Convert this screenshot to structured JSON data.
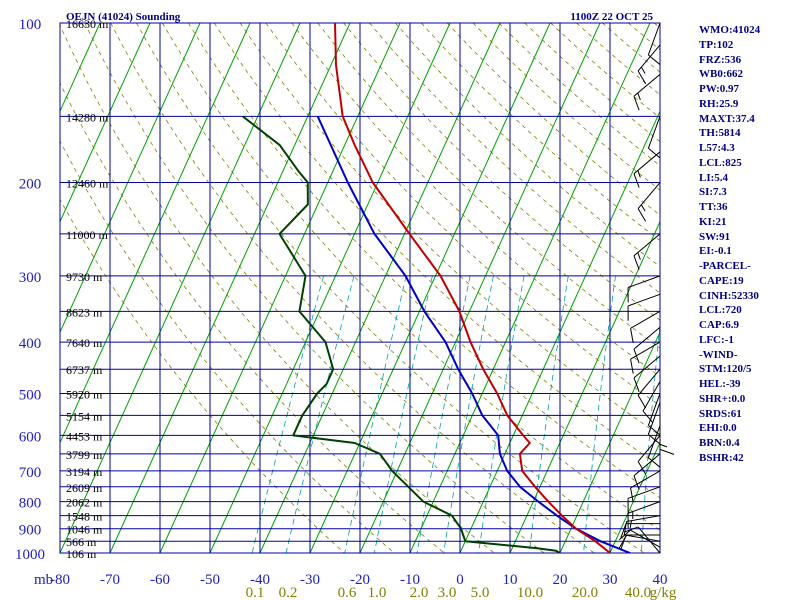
{
  "chart_data": {
    "type": "skew-t",
    "title": "OEJN (41024) Sounding",
    "valid_time": "1100Z 22 OCT 25",
    "pressure_ticks": [
      100,
      200,
      300,
      400,
      500,
      600,
      700,
      800,
      900,
      1000
    ],
    "pressure_unit": "mb",
    "pressure_range": [
      100,
      1000
    ],
    "log_pressure_axis": true,
    "temp_ticks": [
      -80,
      -70,
      -60,
      -50,
      -40,
      -30,
      -20,
      -10,
      0,
      10,
      20,
      30,
      40
    ],
    "temp_range": [
      -80,
      40
    ],
    "mixing_ratio_labels": [
      "0.1",
      "0.2",
      "0.6",
      "1.0",
      "2.0",
      "3.0",
      "5.0",
      "10.0",
      "20.0",
      "40.0"
    ],
    "mixing_ratio_unit": "g/kg",
    "height_labels": [
      {
        "p": 100,
        "label": "16630 m"
      },
      {
        "p": 150,
        "label": "14280 m"
      },
      {
        "p": 200,
        "label": "12460 m"
      },
      {
        "p": 250,
        "label": "11000 m"
      },
      {
        "p": 300,
        "label": "9730 m"
      },
      {
        "p": 350,
        "label": "8623 m"
      },
      {
        "p": 400,
        "label": "7640 m"
      },
      {
        "p": 450,
        "label": "6737 m"
      },
      {
        "p": 500,
        "label": "5920 m"
      },
      {
        "p": 550,
        "label": "5154 m"
      },
      {
        "p": 600,
        "label": "4453 m"
      },
      {
        "p": 650,
        "label": "3799 m"
      },
      {
        "p": 700,
        "label": "3194 m"
      },
      {
        "p": 750,
        "label": "2609 m"
      },
      {
        "p": 800,
        "label": "2062 m"
      },
      {
        "p": 850,
        "label": "1548 m"
      },
      {
        "p": 900,
        "label": "1046 m"
      },
      {
        "p": 950,
        "label": "566 m"
      },
      {
        "p": 1000,
        "label": "106 m"
      }
    ],
    "temperature": [
      [
        1000,
        30
      ],
      [
        950,
        26
      ],
      [
        900,
        21
      ],
      [
        850,
        17
      ],
      [
        800,
        13
      ],
      [
        750,
        9
      ],
      [
        700,
        5
      ],
      [
        650,
        3
      ],
      [
        620,
        4
      ],
      [
        600,
        2
      ],
      [
        550,
        -3
      ],
      [
        500,
        -7
      ],
      [
        450,
        -12
      ],
      [
        400,
        -17
      ],
      [
        350,
        -22
      ],
      [
        300,
        -29
      ],
      [
        250,
        -39
      ],
      [
        200,
        -51
      ],
      [
        170,
        -58
      ],
      [
        150,
        -63
      ],
      [
        120,
        -69
      ],
      [
        100,
        -73
      ]
    ],
    "dewpoint": [
      [
        1000,
        20
      ],
      [
        990,
        19
      ],
      [
        980,
        15
      ],
      [
        950,
        0
      ],
      [
        900,
        -2
      ],
      [
        850,
        -5
      ],
      [
        800,
        -12
      ],
      [
        700,
        -21
      ],
      [
        650,
        -25
      ],
      [
        620,
        -31
      ],
      [
        600,
        -44
      ],
      [
        550,
        -44
      ],
      [
        500,
        -43
      ],
      [
        480,
        -42
      ],
      [
        450,
        -42
      ],
      [
        400,
        -46
      ],
      [
        350,
        -54
      ],
      [
        300,
        -56
      ],
      [
        250,
        -65
      ],
      [
        220,
        -62
      ],
      [
        200,
        -64
      ],
      [
        190,
        -67
      ],
      [
        170,
        -73
      ],
      [
        150,
        -83
      ]
    ],
    "parcel": [
      [
        1000,
        34
      ],
      [
        950,
        27
      ],
      [
        900,
        21
      ],
      [
        850,
        16
      ],
      [
        800,
        11
      ],
      [
        750,
        6
      ],
      [
        700,
        2
      ],
      [
        650,
        -1
      ],
      [
        600,
        -3
      ],
      [
        550,
        -8
      ],
      [
        500,
        -12
      ],
      [
        450,
        -17
      ],
      [
        400,
        -22
      ],
      [
        350,
        -29
      ],
      [
        300,
        -36
      ],
      [
        250,
        -46
      ],
      [
        200,
        -56
      ],
      [
        150,
        -68
      ]
    ],
    "wind_barbs": [
      {
        "p": 1000,
        "dir": 320,
        "spd": 10
      },
      {
        "p": 975,
        "dir": 300,
        "spd": 10
      },
      {
        "p": 950,
        "dir": 280,
        "spd": 10
      },
      {
        "p": 925,
        "dir": 270,
        "spd": 10
      },
      {
        "p": 880,
        "dir": 270,
        "spd": 10
      },
      {
        "p": 850,
        "dir": 260,
        "spd": 15
      },
      {
        "p": 800,
        "dir": 250,
        "spd": 15
      },
      {
        "p": 750,
        "dir": 250,
        "spd": 10
      },
      {
        "p": 700,
        "dir": 240,
        "spd": 10
      },
      {
        "p": 650,
        "dir": 230,
        "spd": 10
      },
      {
        "p": 600,
        "dir": 220,
        "spd": 10
      },
      {
        "p": 575,
        "dir": 200,
        "spd": 10
      },
      {
        "p": 550,
        "dir": 180,
        "spd": 15
      },
      {
        "p": 520,
        "dir": 200,
        "spd": 10
      },
      {
        "p": 500,
        "dir": 200,
        "spd": 10
      },
      {
        "p": 475,
        "dir": 210,
        "spd": 10
      },
      {
        "p": 450,
        "dir": 220,
        "spd": 10
      },
      {
        "p": 425,
        "dir": 230,
        "spd": 10
      },
      {
        "p": 400,
        "dir": 240,
        "spd": 10
      },
      {
        "p": 375,
        "dir": 230,
        "spd": 10
      },
      {
        "p": 350,
        "dir": 240,
        "spd": 10
      },
      {
        "p": 325,
        "dir": 250,
        "spd": 10
      },
      {
        "p": 300,
        "dir": 250,
        "spd": 10
      },
      {
        "p": 250,
        "dir": 230,
        "spd": 15
      },
      {
        "p": 200,
        "dir": 220,
        "spd": 15
      },
      {
        "p": 175,
        "dir": 230,
        "spd": 15
      },
      {
        "p": 150,
        "dir": 200,
        "spd": 10
      },
      {
        "p": 125,
        "dir": 230,
        "spd": 15
      },
      {
        "p": 110,
        "dir": 220,
        "spd": 15
      },
      {
        "p": 100,
        "dir": 200,
        "spd": 10
      }
    ],
    "colors": {
      "grid": "#0000a0",
      "axis_text": "#2020c0",
      "height_text": "#000000",
      "isotherm": "#00a000",
      "dry_adiabat": "#808000",
      "mixing_ratio": "#00a0a0",
      "mixing_ratio_text": "#808000",
      "temperature": "#c00000",
      "dewpoint": "#004000",
      "parcel": "#0000c0",
      "wind": "#000000",
      "stats_text": "#000080"
    }
  },
  "stats": [
    "WMO:41024",
    "TP:102",
    "FRZ:536",
    "WB0:662",
    "PW:0.97",
    "RH:25.9",
    "MAXT:37.4",
    "TH:5814",
    "L57:4.3",
    "LCL:825",
    "LI:5.4",
    "SI:7.3",
    "TT:36",
    "KI:21",
    "SW:91",
    "EI:-0.1",
    "-PARCEL-",
    "CAPE:19",
    "CINH:52330",
    "LCL:720",
    "CAP:6.9",
    "LFC:-1",
    "-WIND-",
    "STM:120/5",
    "HEL:-39",
    "SHR+:0.0",
    "SRDS:61",
    "EHI:0.0",
    "BRN:0.4",
    "BSHR:42"
  ]
}
